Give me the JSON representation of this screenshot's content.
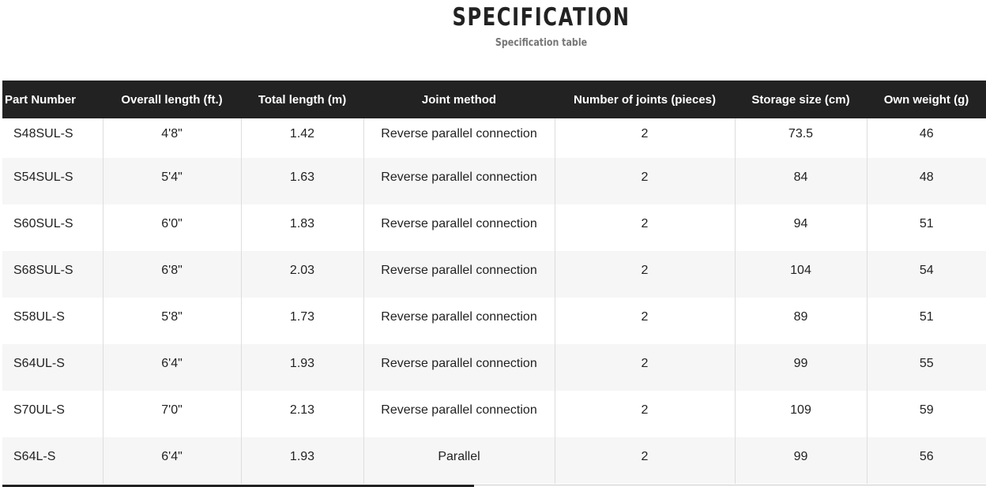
{
  "header": {
    "title": "SPECIFICATION",
    "subtitle": "Specification table"
  },
  "table": {
    "columns": [
      "Part Number",
      "Overall length (ft.)",
      "Total length (m)",
      "Joint method",
      "Number of joints (pieces)",
      "Storage size (cm)",
      "Own weight (g)"
    ],
    "rows": [
      [
        "S48SUL-S",
        "4'8\"",
        "1.42",
        "Reverse parallel connection",
        "2",
        "73.5",
        "46"
      ],
      [
        "S54SUL-S",
        "5'4\"",
        "1.63",
        "Reverse parallel connection",
        "2",
        "84",
        "48"
      ],
      [
        "S60SUL-S",
        "6'0\"",
        "1.83",
        "Reverse parallel connection",
        "2",
        "94",
        "51"
      ],
      [
        "S68SUL-S",
        "6'8\"",
        "2.03",
        "Reverse parallel connection",
        "2",
        "104",
        "54"
      ],
      [
        "S58UL-S",
        "5'8\"",
        "1.73",
        "Reverse parallel connection",
        "2",
        "89",
        "51"
      ],
      [
        "S64UL-S",
        "6'4\"",
        "1.93",
        "Reverse parallel connection",
        "2",
        "99",
        "55"
      ],
      [
        "S70UL-S",
        "7'0\"",
        "2.13",
        "Reverse parallel connection",
        "2",
        "109",
        "59"
      ],
      [
        "S64L-S",
        "6'4\"",
        "1.93",
        "Parallel",
        "2",
        "99",
        "56"
      ]
    ]
  }
}
